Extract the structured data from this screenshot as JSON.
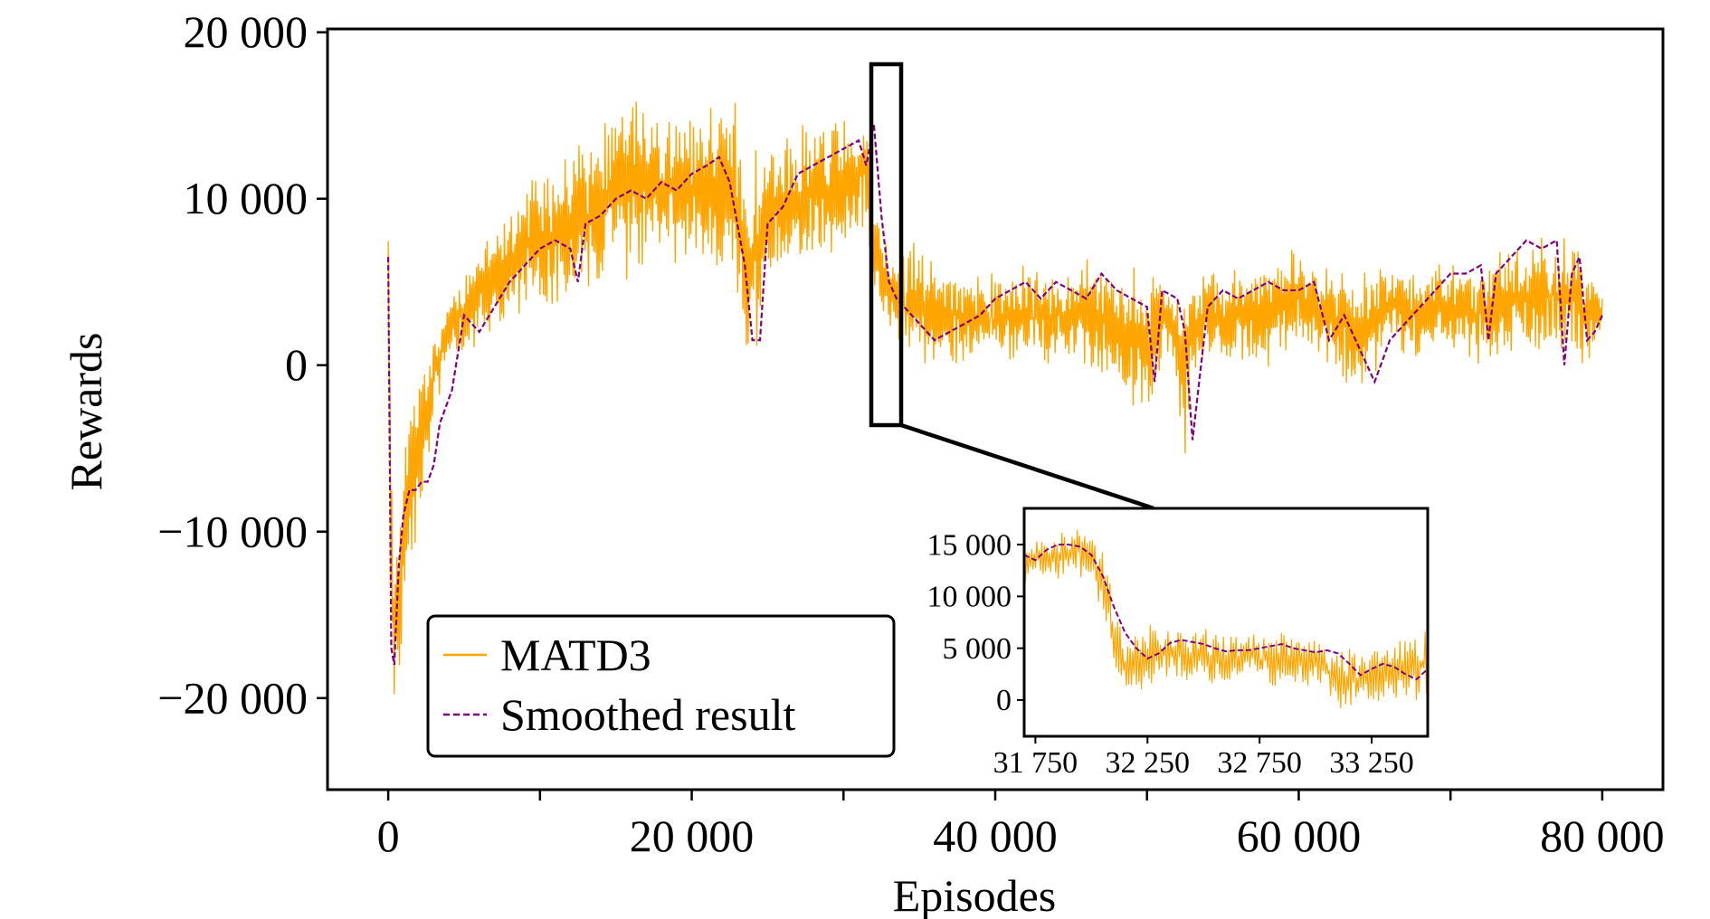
{
  "chart_data": [
    {
      "type": "line",
      "title": "",
      "xlabel": "Episodes",
      "ylabel": "Rewards",
      "xlim": [
        -4000,
        84000
      ],
      "ylim": [
        -25500,
        20200
      ],
      "x_ticks": [
        0,
        20000,
        40000,
        60000,
        80000
      ],
      "x_tick_labels": [
        "0",
        "20 000",
        "40 000",
        "60 000",
        "80 000"
      ],
      "y_ticks": [
        -20000,
        -10000,
        0,
        10000,
        20000
      ],
      "y_tick_labels": [
        "−20 000",
        "−10 000",
        "0",
        "10 000",
        "20 000"
      ],
      "grid": false,
      "legend_position": "bottom-left",
      "series": [
        {
          "name": "MATD3",
          "color": "#FFA500",
          "style": "solid",
          "x": [
            0,
            200,
            400,
            800,
            1200,
            1600,
            2000,
            2400,
            2800,
            3200,
            3600,
            4000,
            5000,
            6000,
            8000,
            10000,
            12000,
            14000,
            16000,
            18000,
            20000,
            22000,
            24000,
            25000,
            26000,
            28000,
            30000,
            31500,
            32000,
            32500,
            33000,
            34000,
            35000,
            36000,
            38000,
            40000,
            42000,
            44000,
            46000,
            48000,
            50000,
            51000,
            52000,
            52500,
            53000,
            54000,
            56000,
            58000,
            60000,
            62000,
            64000,
            66000,
            68000,
            70000,
            72000,
            74000,
            76000,
            78000,
            79000,
            80000
          ],
          "upper": [
            12500,
            -2000,
            -12000,
            -6000,
            -1000,
            0,
            500,
            1000,
            2000,
            3000,
            4000,
            5000,
            6500,
            8500,
            11000,
            13000,
            14000,
            16000,
            17500,
            17000,
            16000,
            17500,
            16500,
            14000,
            15000,
            16500,
            16500,
            16500,
            12000,
            9500,
            8000,
            8000,
            8500,
            7500,
            7000,
            6500,
            6500,
            6500,
            7000,
            7000,
            6500,
            6500,
            6500,
            6500,
            6000,
            6500,
            6500,
            7000,
            8500,
            6500,
            6500,
            7000,
            6500,
            7000,
            7500,
            8500,
            8500,
            8500,
            7000,
            5000
          ],
          "lower": [
            3000,
            -23500,
            -22500,
            -20000,
            -16000,
            -14000,
            -11000,
            -9000,
            -5000,
            -3000,
            -2000,
            0,
            0,
            500,
            1500,
            2500,
            3000,
            3500,
            4000,
            4500,
            4500,
            4000,
            -4000,
            3500,
            4500,
            5000,
            5500,
            8000,
            3000,
            2000,
            1000,
            -1000,
            -1000,
            -1500,
            -1000,
            -1000,
            -500,
            -1000,
            -1000,
            -2500,
            -4500,
            -1000,
            -3000,
            -8000,
            -1500,
            -1000,
            -500,
            -1000,
            0,
            -1000,
            -3000,
            0,
            -500,
            0,
            -1000,
            -1000,
            0,
            0,
            -1000,
            1000
          ]
        },
        {
          "name": "Smoothed result",
          "color": "#800080",
          "style": "dashed",
          "x": [
            0,
            200,
            400,
            700,
            1000,
            1400,
            1800,
            2200,
            2600,
            3000,
            3400,
            3800,
            4200,
            5000,
            6000,
            7000,
            8000,
            9000,
            10000,
            11000,
            12000,
            12500,
            13000,
            14000,
            15000,
            16000,
            17000,
            18000,
            19000,
            20000,
            21000,
            21800,
            22500,
            23500,
            24000,
            24500,
            25000,
            26000,
            27000,
            28000,
            29000,
            30000,
            31000,
            31500,
            32000,
            32500,
            33000,
            33500,
            34000,
            35000,
            36000,
            37000,
            38000,
            39000,
            40000,
            41000,
            42000,
            43000,
            44000,
            45000,
            46000,
            47000,
            48000,
            49000,
            50000,
            50500,
            51000,
            52000,
            52500,
            53000,
            54000,
            55000,
            56000,
            57000,
            58000,
            59000,
            60000,
            61000,
            62000,
            63000,
            64000,
            65000,
            66000,
            67000,
            68000,
            69000,
            70000,
            71000,
            72000,
            72500,
            73000,
            74000,
            75000,
            76000,
            77000,
            77500,
            78000,
            78500,
            79000,
            79500,
            80000
          ],
          "y": [
            6500,
            -17000,
            -18000,
            -12000,
            -9000,
            -7500,
            -7500,
            -7000,
            -7000,
            -6000,
            -3500,
            -2500,
            -1500,
            3000,
            2000,
            3500,
            5000,
            6000,
            7000,
            7500,
            7000,
            5000,
            8500,
            9000,
            10000,
            10500,
            10000,
            11000,
            10500,
            11500,
            12000,
            12500,
            11000,
            6000,
            1500,
            1500,
            8500,
            9500,
            11500,
            12000,
            12500,
            13000,
            13500,
            12000,
            14500,
            9000,
            5000,
            4000,
            3500,
            2500,
            1500,
            2000,
            2500,
            3000,
            4000,
            4500,
            5000,
            4000,
            5000,
            4500,
            4000,
            5500,
            4500,
            4000,
            3500,
            -1000,
            4500,
            4000,
            2000,
            -4500,
            3500,
            4500,
            4000,
            4500,
            5000,
            4500,
            4500,
            5000,
            1500,
            3000,
            1000,
            -1000,
            1500,
            2500,
            3500,
            4500,
            5500,
            5500,
            6000,
            1500,
            5500,
            6500,
            7500,
            7000,
            7500,
            0,
            5500,
            6500,
            1500,
            2000,
            3000
          ]
        }
      ]
    },
    {
      "type": "line",
      "title": "",
      "xlabel": "",
      "ylabel": "",
      "xlim": [
        31700,
        33500
      ],
      "ylim": [
        -3500,
        18500
      ],
      "x_ticks": [
        31750,
        32250,
        32750,
        33250
      ],
      "x_tick_labels": [
        "31 750",
        "32 250",
        "32 750",
        "33 250"
      ],
      "y_ticks": [
        0,
        5000,
        10000,
        15000
      ],
      "y_tick_labels": [
        "0",
        "5 000",
        "10 000",
        "15 000"
      ],
      "grid": false,
      "series": [
        {
          "name": "MATD3",
          "color": "#FFA500",
          "style": "solid",
          "x": [
            31700,
            31750,
            31800,
            31900,
            32000,
            32050,
            32100,
            32150,
            32200,
            32300,
            32400,
            32500,
            32600,
            32700,
            32800,
            32900,
            33000,
            33050,
            33100,
            33200,
            33300,
            33400,
            33500
          ],
          "upper": [
            16000,
            16500,
            16000,
            17000,
            17000,
            15000,
            11000,
            7000,
            8000,
            8500,
            8000,
            7500,
            7000,
            8000,
            7500,
            7000,
            8000,
            7000,
            6500,
            6000,
            5500,
            7500,
            8500
          ],
          "lower": [
            10000,
            10500,
            11000,
            11500,
            11000,
            7000,
            2000,
            0,
            0,
            1000,
            500,
            1000,
            0,
            1000,
            0,
            500,
            0,
            -1500,
            -2500,
            -2000,
            -1500,
            -1000,
            -500
          ]
        },
        {
          "name": "Smoothed result",
          "color": "#800080",
          "style": "dashed",
          "x": [
            31700,
            31750,
            31800,
            31850,
            31900,
            31950,
            32000,
            32050,
            32100,
            32150,
            32200,
            32250,
            32300,
            32350,
            32400,
            32450,
            32500,
            32550,
            32600,
            32650,
            32700,
            32750,
            32800,
            32850,
            32900,
            32950,
            33000,
            33050,
            33100,
            33150,
            33200,
            33250,
            33300,
            33350,
            33400,
            33450,
            33500
          ],
          "y": [
            14000,
            13500,
            14500,
            15000,
            15000,
            14800,
            14000,
            12000,
            9000,
            6500,
            5000,
            4000,
            4500,
            5500,
            5800,
            5600,
            5400,
            5000,
            4700,
            4800,
            4800,
            5000,
            5200,
            5400,
            5000,
            4800,
            4600,
            4800,
            4500,
            3500,
            2400,
            3000,
            3500,
            3200,
            2500,
            2000,
            3000
          ]
        }
      ]
    }
  ],
  "legend": {
    "items": [
      {
        "label": "MATD3",
        "color": "#FFA500",
        "style": "solid"
      },
      {
        "label": "Smoothed result",
        "color": "#800080",
        "style": "dashed"
      }
    ]
  }
}
